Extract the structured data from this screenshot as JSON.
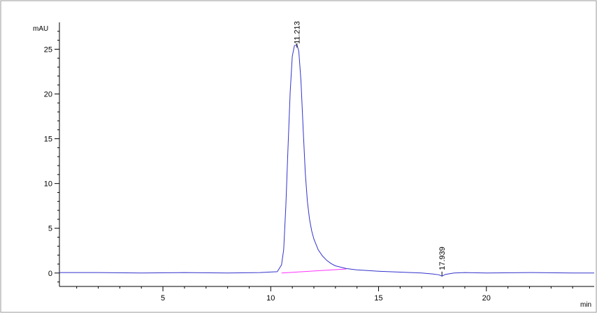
{
  "chart_data": {
    "type": "line",
    "title": "",
    "ylabel": "mAU",
    "xlabel": "min",
    "xlim": [
      0.2,
      25.0
    ],
    "ylim": [
      -1.5,
      28.0
    ],
    "x_ticks": [
      5,
      10,
      15,
      20
    ],
    "y_ticks": [
      0,
      5,
      10,
      15,
      20,
      25
    ],
    "grid": false,
    "legend": "none",
    "peaks": [
      {
        "label": "11.213",
        "rt": 11.213,
        "height": 25.5
      },
      {
        "label": "17.939",
        "rt": 17.939,
        "height": -0.3
      }
    ],
    "series": [
      {
        "x": [
          0.2,
          2.0,
          4.0,
          6.0,
          8.0,
          9.5,
          10.3,
          10.5,
          10.6,
          10.7,
          10.8,
          10.9,
          11.0,
          11.1,
          11.213,
          11.3,
          11.4,
          11.5,
          11.6,
          11.7,
          11.8,
          11.9,
          12.0,
          12.2,
          12.4,
          12.6,
          12.8,
          13.0,
          13.5,
          14.0,
          15.0,
          16.0,
          17.0,
          17.5,
          17.8,
          17.939,
          18.1,
          18.5,
          19.0,
          20.0,
          22.0,
          24.0,
          25.0
        ],
        "y": [
          0.05,
          0.05,
          0.0,
          0.05,
          0.0,
          0.05,
          0.15,
          0.9,
          2.6,
          7.5,
          14.0,
          20.2,
          24.2,
          25.4,
          25.5,
          24.8,
          21.5,
          16.2,
          11.2,
          8.0,
          6.0,
          4.7,
          3.8,
          2.6,
          1.9,
          1.4,
          1.05,
          0.8,
          0.5,
          0.35,
          0.2,
          0.1,
          0.0,
          -0.1,
          -0.2,
          -0.35,
          -0.15,
          0.0,
          0.05,
          0.0,
          0.05,
          0.0,
          0.0
        ]
      }
    ],
    "baseline": {
      "x": [
        10.5,
        13.5
      ],
      "y": [
        0.0,
        0.45
      ]
    },
    "colors": {
      "signal": "#3333cc",
      "baseline": "#ff33ff",
      "axis": "#000000",
      "frame": "#999999"
    }
  }
}
